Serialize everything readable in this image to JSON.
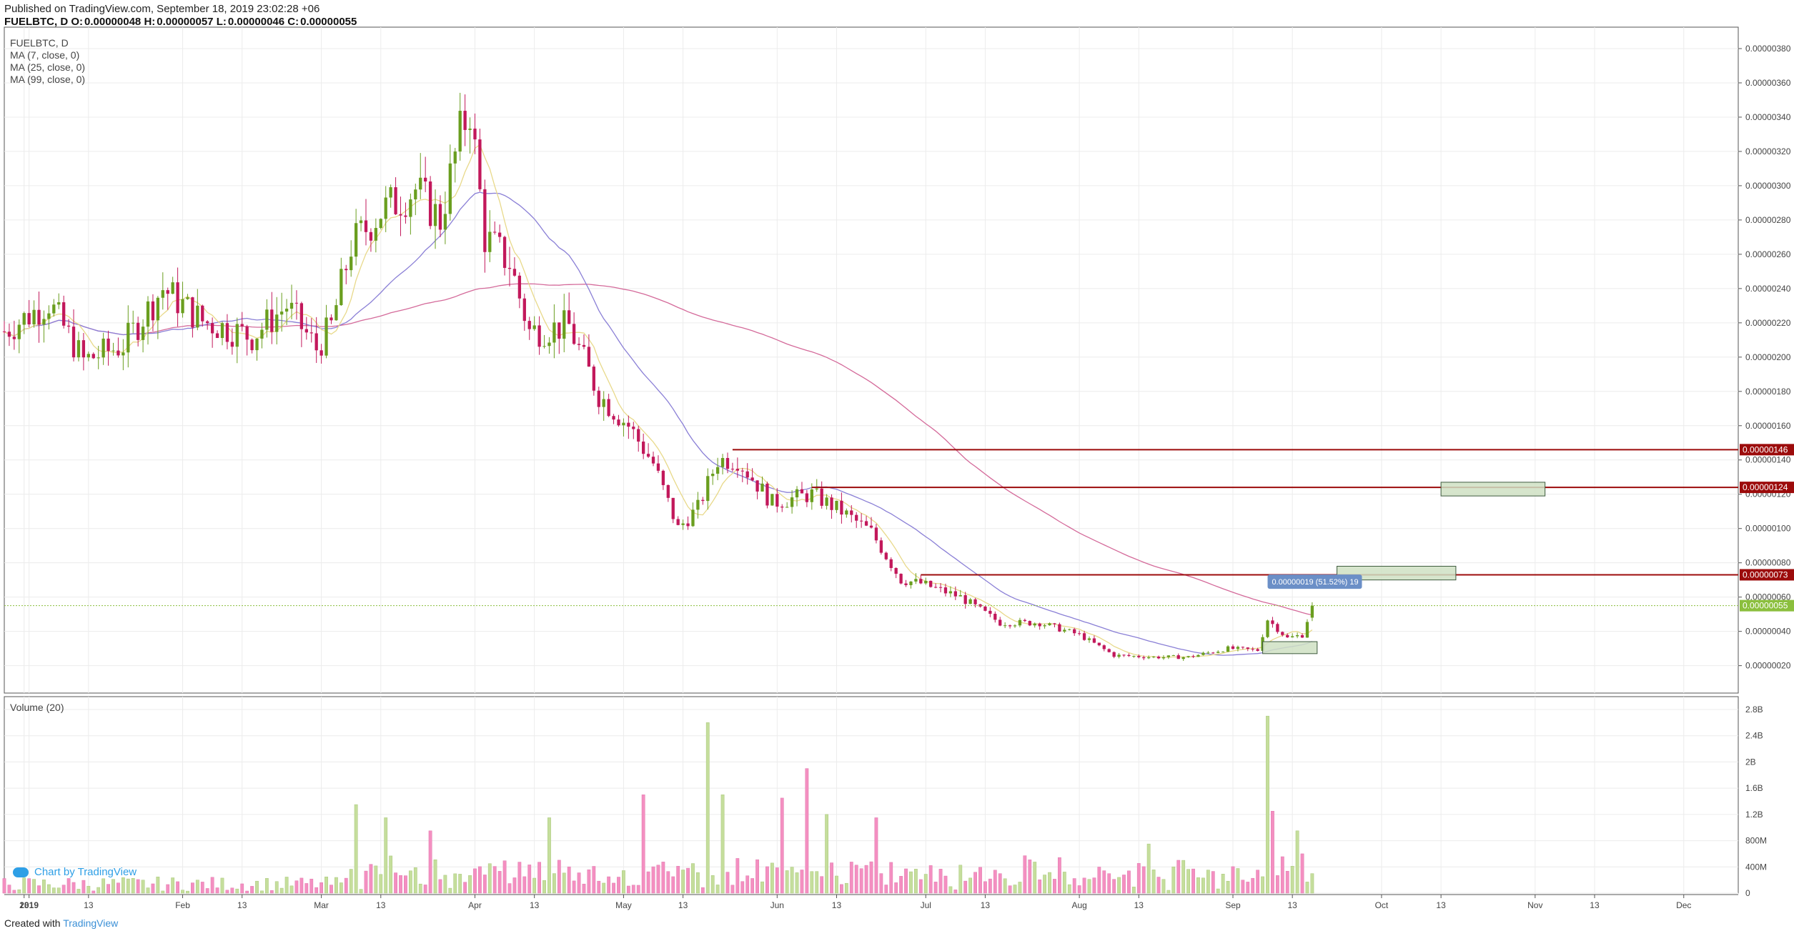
{
  "header": {
    "published": "Published on TradingView.com, September 18, 2019 23:02:28 +06",
    "symbol": "FUELBTC, D",
    "o_label": "O:",
    "o": "0.00000048",
    "h_label": "H:",
    "h": "0.00000057",
    "l_label": "L:",
    "l": "0.00000046",
    "c_label": "C:",
    "c": "0.00000055"
  },
  "legend": [
    "FUELBTC, D",
    "MA (7, close, 0)",
    "MA (25, close, 0)",
    "MA (99, close, 0)"
  ],
  "volume_legend": "Volume (20)",
  "watermark": "Chart by TradingView",
  "credit": {
    "prefix": "Created with",
    "brand": "TradingView"
  },
  "colors": {
    "up": "#6a9e1f",
    "down": "#c2185b",
    "up_vol": "#c5de9c",
    "down_vol": "#f48fc1",
    "ma7": "#e8d98a",
    "ma25": "#8a7fd6",
    "ma99": "#d46a9a",
    "level": "#9c0b0b",
    "price_line": "#8bbf3d",
    "grid": "#ececec"
  },
  "chart_data": {
    "type": "candlestick",
    "symbol": "FUELBTC",
    "interval": "D",
    "price_axis_ticks": [
      "0.00000020",
      "0.00000040",
      "0.00000060",
      "0.00000080",
      "0.00000100",
      "0.00000120",
      "0.00000140",
      "0.00000160",
      "0.00000180",
      "0.00000200",
      "0.00000220",
      "0.00000240",
      "0.00000260",
      "0.00000280",
      "0.00000300",
      "0.00000320",
      "0.00000340",
      "0.00000360",
      "0.00000380"
    ],
    "price_ylim": [
      4e-08,
      3.9e-06
    ],
    "volume_axis_ticks": [
      "0",
      "400M",
      "800M",
      "1.2B",
      "1.6B",
      "2B",
      "2.4B",
      "2.8B"
    ],
    "volume_ylim": [
      0,
      2800000000
    ],
    "x_ticks": [
      "13",
      "2019",
      "13",
      "Feb",
      "13",
      "Mar",
      "13",
      "Apr",
      "13",
      "May",
      "13",
      "Jun",
      "13",
      "Jul",
      "13",
      "Aug",
      "13",
      "Sep",
      "13",
      "Oct",
      "13",
      "Nov",
      "13",
      "Dec"
    ],
    "horizontal_levels": [
      {
        "price": 1.46e-06,
        "label": "0.00000146",
        "start": "2019-05-23"
      },
      {
        "price": 1.24e-06,
        "label": "0.00000124",
        "start": "2019-06-08"
      },
      {
        "price": 7.3e-07,
        "label": "0.00000073",
        "start": "2019-06-30"
      }
    ],
    "last_price": {
      "price": 5.5e-07,
      "label": "0.00000055"
    },
    "measure": {
      "label": "0.00000019 (51.52%) 19"
    },
    "target_boxes": [
      {
        "from": "2019-09-07",
        "to": "2019-09-18",
        "low": 2.7e-07,
        "high": 3.4e-07
      },
      {
        "from": "2019-09-22",
        "to": "2019-10-16",
        "low": 7e-07,
        "high": 7.8e-07
      },
      {
        "from": "2019-10-13",
        "to": "2019-11-03",
        "low": 1.19e-06,
        "high": 1.27e-06
      }
    ],
    "anchors": [
      [
        "2018-12-27",
        2.15e-06
      ],
      [
        "2019-01-05",
        2.32e-06
      ],
      [
        "2019-01-12",
        1.98e-06
      ],
      [
        "2019-01-20",
        2.07e-06
      ],
      [
        "2019-01-28",
        2.4e-06
      ],
      [
        "2019-02-05",
        2.21e-06
      ],
      [
        "2019-02-15",
        2.12e-06
      ],
      [
        "2019-02-22",
        2.3e-06
      ],
      [
        "2019-02-28",
        2.05e-06
      ],
      [
        "2019-03-03",
        2.18e-06
      ],
      [
        "2019-03-07",
        2.65e-06
      ],
      [
        "2019-03-13",
        2.85e-06
      ],
      [
        "2019-03-20",
        2.98e-06
      ],
      [
        "2019-03-25",
        2.8e-06
      ],
      [
        "2019-03-29",
        3.3e-06
      ],
      [
        "2019-03-31",
        3.45e-06
      ],
      [
        "2019-04-03",
        2.7e-06
      ],
      [
        "2019-04-08",
        2.55e-06
      ],
      [
        "2019-04-12",
        2.15e-06
      ],
      [
        "2019-04-20",
        2.18e-06
      ],
      [
        "2019-04-26",
        1.78e-06
      ],
      [
        "2019-05-02",
        1.6e-06
      ],
      [
        "2019-05-07",
        1.38e-06
      ],
      [
        "2019-05-12",
        1e-06
      ],
      [
        "2019-05-16",
        1.12e-06
      ],
      [
        "2019-05-20",
        1.4e-06
      ],
      [
        "2019-05-24",
        1.4e-06
      ],
      [
        "2019-05-31",
        1.15e-06
      ],
      [
        "2019-06-08",
        1.2e-06
      ],
      [
        "2019-06-14",
        1.1e-06
      ],
      [
        "2019-06-20",
        9.8e-07
      ],
      [
        "2019-06-26",
        7e-07
      ],
      [
        "2019-06-30",
        6.8e-07
      ],
      [
        "2019-07-08",
        6e-07
      ],
      [
        "2019-07-16",
        4.5e-07
      ],
      [
        "2019-07-24",
        4.5e-07
      ],
      [
        "2019-08-01",
        3.8e-07
      ],
      [
        "2019-08-08",
        2.6e-07
      ],
      [
        "2019-08-16",
        2.5e-07
      ],
      [
        "2019-08-23",
        2.5e-07
      ],
      [
        "2019-08-31",
        3e-07
      ],
      [
        "2019-09-06",
        2.9e-07
      ],
      [
        "2019-09-08",
        4.7e-07
      ],
      [
        "2019-09-12",
        3.6e-07
      ],
      [
        "2019-09-15",
        3.8e-07
      ],
      [
        "2019-09-17",
        5.5e-07
      ]
    ],
    "volume_peaks": [
      [
        "2019-03-08",
        1350000000
      ],
      [
        "2019-03-14",
        1150000000
      ],
      [
        "2019-03-23",
        950000000
      ],
      [
        "2019-04-16",
        1150000000
      ],
      [
        "2019-04-28",
        250000000
      ],
      [
        "2019-05-05",
        1500000000
      ],
      [
        "2019-05-18",
        2600000000
      ],
      [
        "2019-05-21",
        1500000000
      ],
      [
        "2019-06-02",
        1450000000
      ],
      [
        "2019-06-07",
        1900000000
      ],
      [
        "2019-06-11",
        1200000000
      ],
      [
        "2019-06-21",
        1150000000
      ],
      [
        "2019-08-15",
        750000000
      ],
      [
        "2019-08-22",
        500000000
      ],
      [
        "2019-09-08",
        2700000000
      ],
      [
        "2019-09-09",
        1250000000
      ],
      [
        "2019-09-14",
        950000000
      ],
      [
        "2019-09-15",
        600000000
      ]
    ]
  }
}
